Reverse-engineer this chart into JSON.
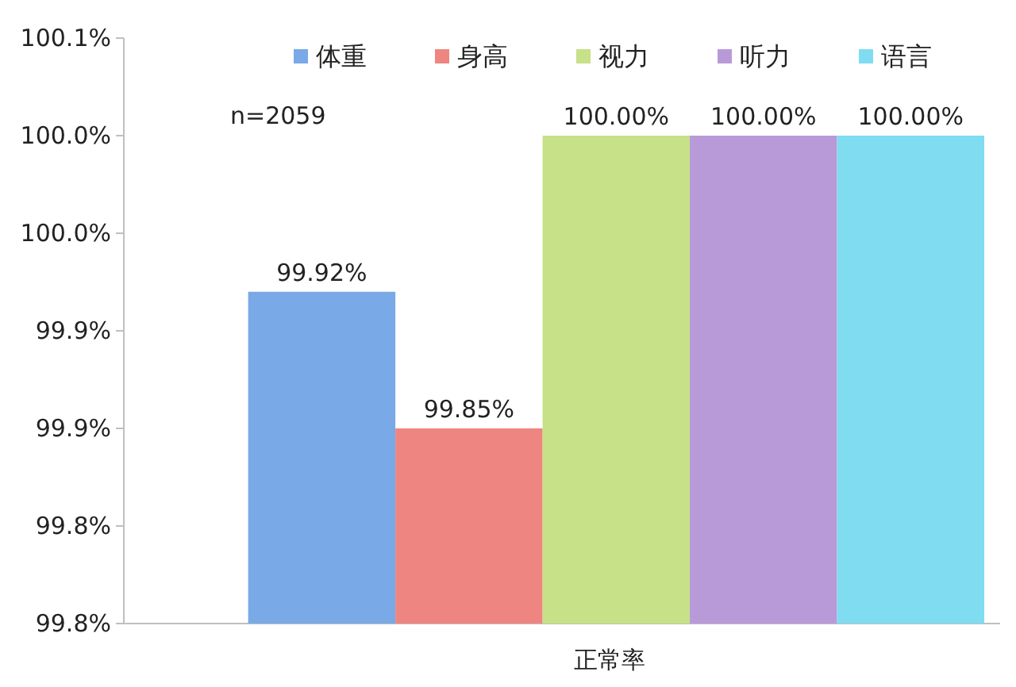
{
  "chart_data": {
    "type": "bar",
    "categories": [
      "正常率"
    ],
    "series": [
      {
        "name": "体重",
        "color": "#79a9e6",
        "values": [
          99.92
        ],
        "value_labels": [
          "99.92%"
        ]
      },
      {
        "name": "身高",
        "color": "#ef8580",
        "values": [
          99.85
        ],
        "value_labels": [
          "99.85%"
        ]
      },
      {
        "name": "视力",
        "color": "#c6e187",
        "values": [
          100.0
        ],
        "value_labels": [
          "100.00%"
        ]
      },
      {
        "name": "听力",
        "color": "#b89ad9",
        "values": [
          100.0
        ],
        "value_labels": [
          "100.00%"
        ]
      },
      {
        "name": "语言",
        "color": "#7fdcf1",
        "values": [
          100.0
        ],
        "value_labels": [
          "100.00%"
        ]
      }
    ],
    "ylim": [
      99.75,
      100.05
    ],
    "yticks": [
      {
        "value": 99.75,
        "label": "99.8%"
      },
      {
        "value": 99.8,
        "label": "99.8%"
      },
      {
        "value": 99.85,
        "label": "99.9%"
      },
      {
        "value": 99.9,
        "label": "99.9%"
      },
      {
        "value": 99.95,
        "label": "100.0%"
      },
      {
        "value": 100.0,
        "label": "100.0%"
      },
      {
        "value": 100.05,
        "label": "100.1%"
      }
    ],
    "annotations": [
      "n=2059"
    ],
    "legend": "top"
  }
}
